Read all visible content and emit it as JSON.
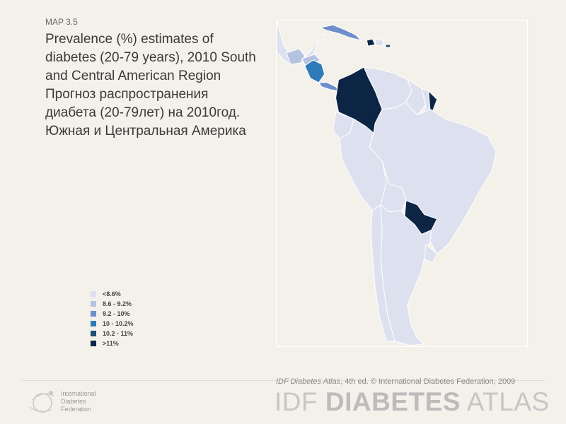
{
  "header": {
    "map_id": "MAP 3.5",
    "title": "Prevalence (%) estimates of diabetes (20-79 years), 2010 South and Central American Region Прогноз распространения диабета (20-79лет) на 2010год. Южная и Центральная Америка"
  },
  "legend": {
    "items": [
      {
        "label": "<8.6%",
        "color": "#dde1ef"
      },
      {
        "label": "8.6 - 9.2%",
        "color": "#b5c3e1"
      },
      {
        "label": "9.2 - 10%",
        "color": "#6e8ecb"
      },
      {
        "label": "10 - 10.2%",
        "color": "#2f7ab9"
      },
      {
        "label": "10.2 - 11%",
        "color": "#1d4f77"
      },
      {
        "label": ">11%",
        "color": "#0c2545"
      }
    ]
  },
  "footer": {
    "org_line1": "International",
    "org_line2": "Diabetes",
    "org_line3": "Federation",
    "credit_title": "IDF Diabetes Atlas",
    "credit_rest": ", 4th ed.  © International Diabetes Federation, 2009",
    "brand_prefix": "IDF ",
    "brand_bold": "DIABETES",
    "brand_suffix": " ATLAS"
  }
}
